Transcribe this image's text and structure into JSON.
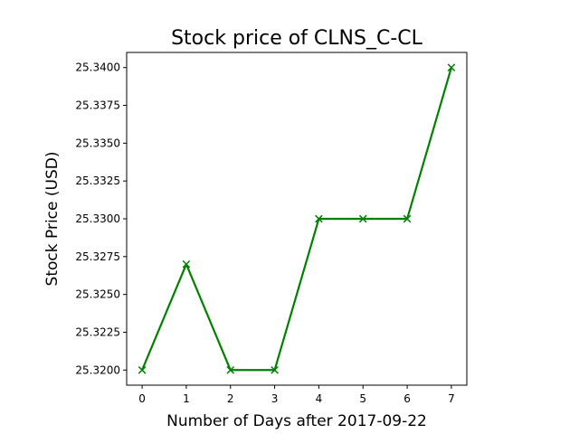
{
  "chart_data": {
    "type": "line",
    "title": "Stock price of CLNS_C-CL",
    "xlabel": "Number of Days after 2017-09-22",
    "ylabel": "Stock Price (USD)",
    "x": [
      0,
      1,
      2,
      3,
      4,
      5,
      6,
      7
    ],
    "series": [
      {
        "values": [
          25.32,
          25.327,
          25.32,
          25.32,
          25.33,
          25.33,
          25.33,
          25.34
        ],
        "color": "#008000",
        "marker": "x"
      }
    ],
    "xlim": [
      -0.35,
      7.35
    ],
    "ylim": [
      25.319,
      25.341
    ],
    "xticks": [
      "0",
      "1",
      "2",
      "3",
      "4",
      "5",
      "6",
      "7"
    ],
    "yticks": [
      "25.3200",
      "25.3225",
      "25.3250",
      "25.3275",
      "25.3300",
      "25.3325",
      "25.3350",
      "25.3375",
      "25.3400"
    ],
    "ytick_values": [
      25.32,
      25.3225,
      25.325,
      25.3275,
      25.33,
      25.3325,
      25.335,
      25.3375,
      25.34
    ],
    "grid": false,
    "legend": "none"
  }
}
